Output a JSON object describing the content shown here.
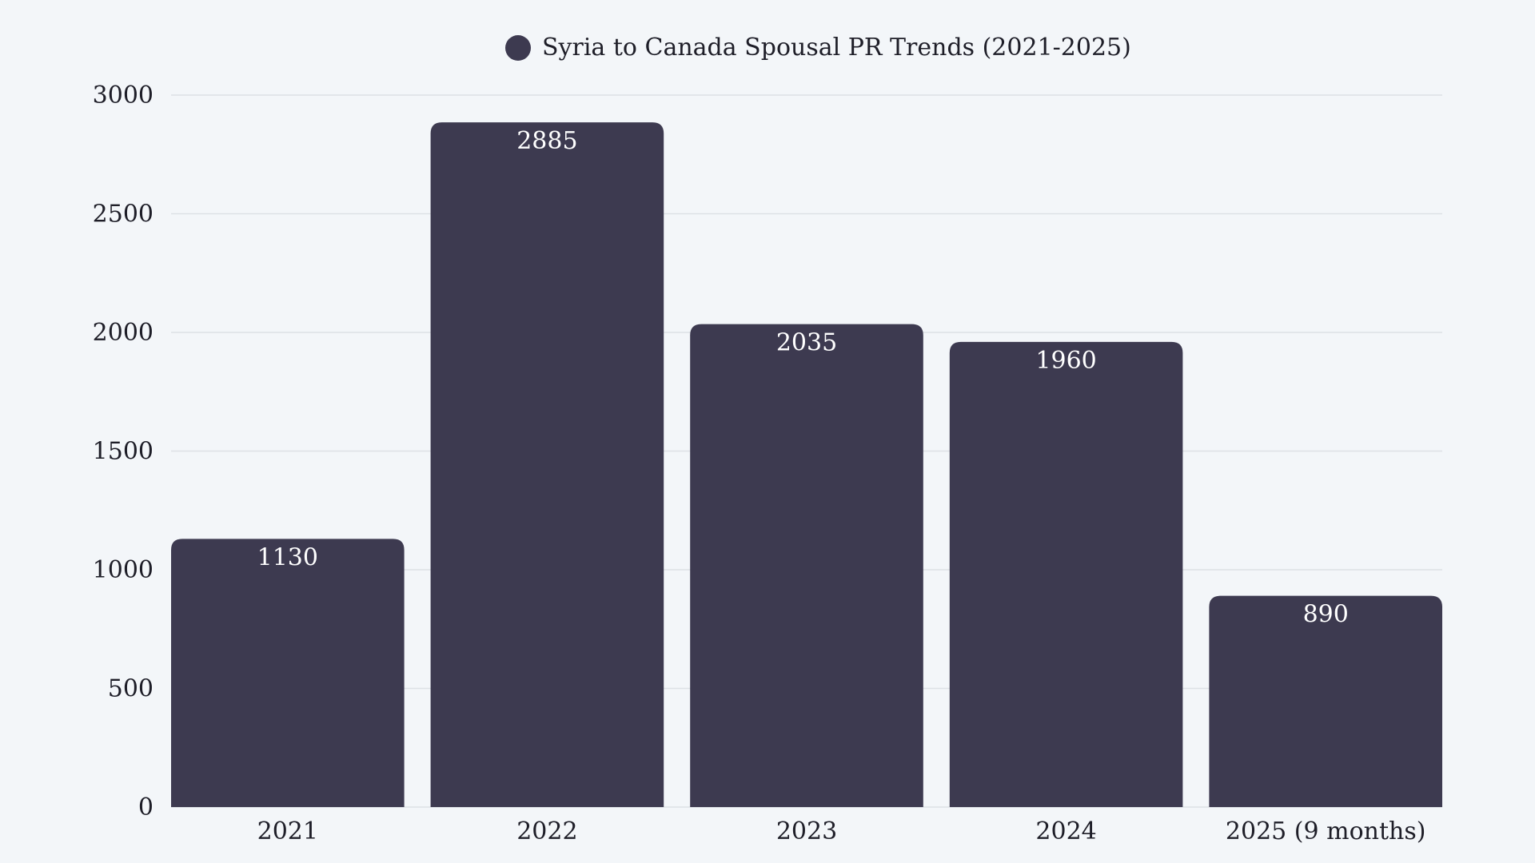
{
  "chart_data": {
    "type": "bar",
    "title": "",
    "xlabel": "",
    "ylabel": "",
    "categories": [
      "2021",
      "2022",
      "2023",
      "2024",
      "2025 (9 months)"
    ],
    "series": [
      {
        "name": "Syria to Canada Spousal PR Trends (2021-2025)",
        "values": [
          1130,
          2885,
          2035,
          1960,
          890
        ]
      }
    ],
    "ylim": [
      0,
      3000
    ],
    "yticks": [
      0,
      500,
      1000,
      1500,
      2000,
      2500,
      3000
    ],
    "grid": true,
    "legend_position": "top-center",
    "data_labels": true,
    "colors": {
      "bar": "#3d3a50",
      "background": "#f3f6f9",
      "grid": "#dde1e6",
      "label": "#ffffff"
    }
  }
}
